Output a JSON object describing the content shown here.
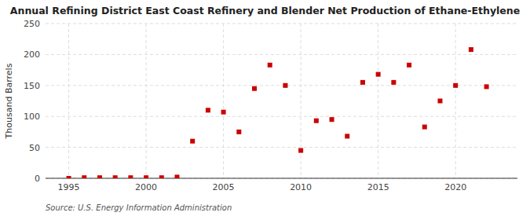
{
  "chart_data": {
    "type": "scatter",
    "title": "Annual Refining District East Coast Refinery and Blender Net Production of Ethane-Ethylene",
    "y_label": "Thousand Barrels",
    "source": "Source: U.S. Energy Information Administration",
    "x": [
      1995,
      1996,
      1997,
      1998,
      1999,
      2000,
      2001,
      2002,
      2003,
      2004,
      2005,
      2006,
      2007,
      2008,
      2009,
      2010,
      2011,
      2012,
      2013,
      2014,
      2015,
      2016,
      2017,
      2018,
      2019,
      2020,
      2021,
      2022
    ],
    "values": [
      0,
      1,
      1,
      1,
      1,
      1,
      1,
      2,
      60,
      110,
      107,
      75,
      145,
      183,
      150,
      45,
      93,
      95,
      68,
      155,
      168,
      155,
      183,
      83,
      125,
      150,
      208,
      148
    ],
    "color": "#cc0000",
    "marker": "square",
    "xlim": [
      1993.5,
      2024
    ],
    "ylim": [
      0,
      250
    ],
    "xticks": [
      1995,
      2000,
      2005,
      2010,
      2015,
      2020
    ],
    "yticks": [
      0,
      50,
      100,
      150,
      200,
      250
    ],
    "grid": true
  }
}
